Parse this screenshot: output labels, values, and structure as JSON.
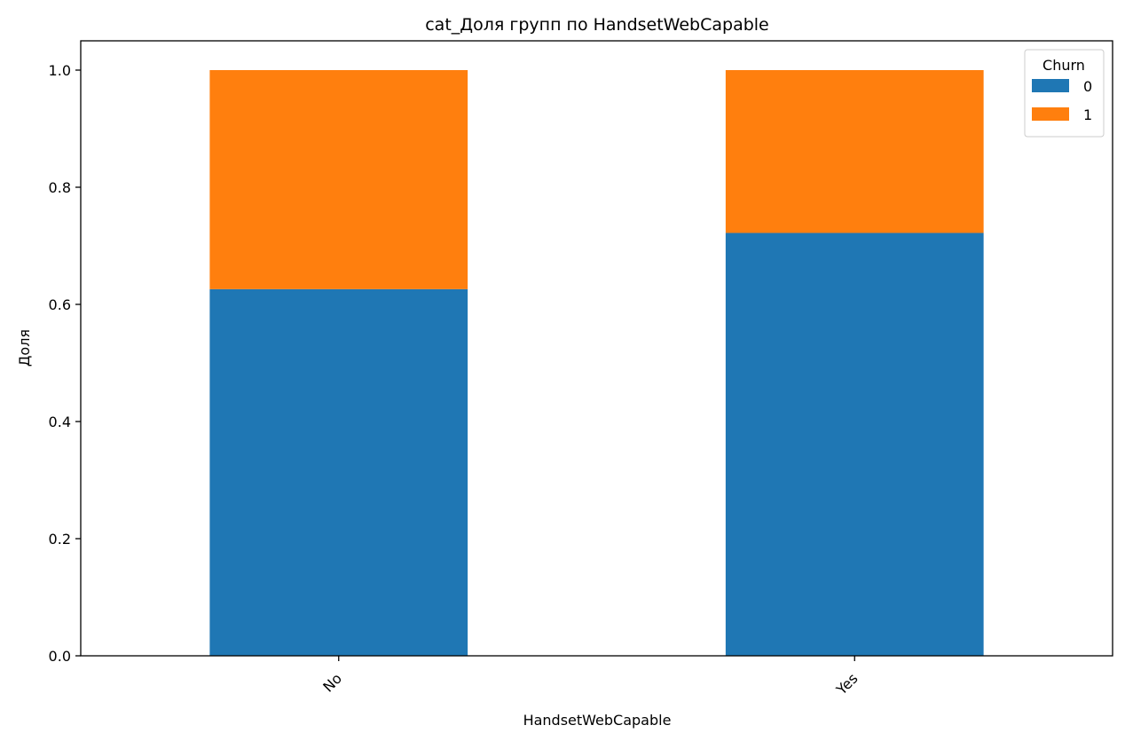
{
  "chart_data": {
    "type": "bar",
    "stacked": true,
    "title": "cat_Доля групп по HandsetWebCapable",
    "xlabel": "HandsetWebCapable",
    "ylabel": "Доля",
    "categories": [
      "No",
      "Yes"
    ],
    "ylim": [
      0,
      1.05
    ],
    "yticks": [
      "0.0",
      "0.2",
      "0.4",
      "0.6",
      "0.8",
      "1.0"
    ],
    "ytick_values": [
      0,
      0.2,
      0.4,
      0.6,
      0.8,
      1.0
    ],
    "grid": false,
    "legend": {
      "title": "Churn",
      "placement": "top-right"
    },
    "series": [
      {
        "name": "0",
        "color": "#1f77b4",
        "values": [
          0.626,
          0.722
        ]
      },
      {
        "name": "1",
        "color": "#ff7f0e",
        "values": [
          0.374,
          0.278
        ]
      }
    ]
  }
}
